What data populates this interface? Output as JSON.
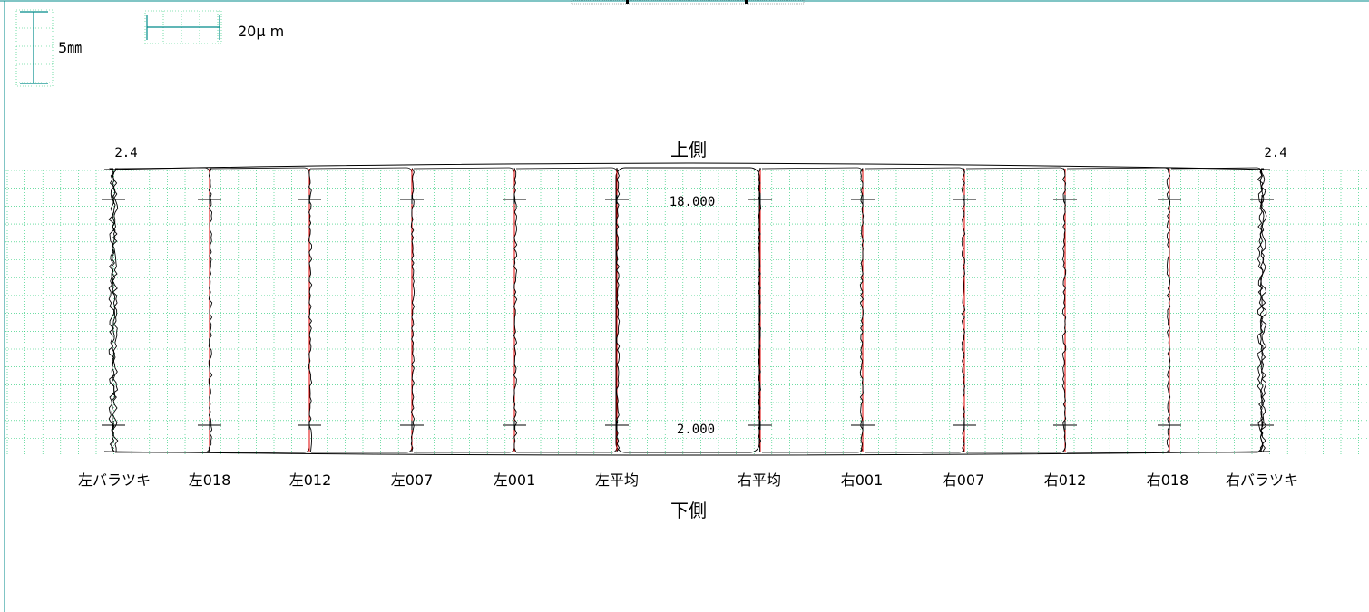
{
  "scale": {
    "vertical_label": "5㎜",
    "horizontal_label": "20μ m",
    "color": "#008b8b"
  },
  "chart_data": {
    "type": "line",
    "title_top": "上側",
    "title_bottom": "下側",
    "upper_marker": "18.000",
    "lower_marker": "2.000",
    "left_variation_value": "2.4",
    "right_variation_value": "2.4",
    "colors": {
      "measured": "#000000",
      "fitted": "#e00000",
      "grid": "#19c86e",
      "frame": "#008b8b"
    },
    "profiles": [
      {
        "label": "左バラツキ",
        "side": "left",
        "kind": "variation"
      },
      {
        "label": "左018",
        "side": "left",
        "kind": "profile"
      },
      {
        "label": "左012",
        "side": "left",
        "kind": "profile"
      },
      {
        "label": "左007",
        "side": "left",
        "kind": "profile"
      },
      {
        "label": "左001",
        "side": "left",
        "kind": "profile"
      },
      {
        "label": "左平均",
        "side": "left",
        "kind": "average"
      },
      {
        "label": "右平均",
        "side": "right",
        "kind": "average"
      },
      {
        "label": "右001",
        "side": "right",
        "kind": "profile"
      },
      {
        "label": "右007",
        "side": "right",
        "kind": "profile"
      },
      {
        "label": "右012",
        "side": "right",
        "kind": "profile"
      },
      {
        "label": "右018",
        "side": "right",
        "kind": "profile"
      },
      {
        "label": "右バラツキ",
        "side": "right",
        "kind": "variation"
      }
    ]
  }
}
